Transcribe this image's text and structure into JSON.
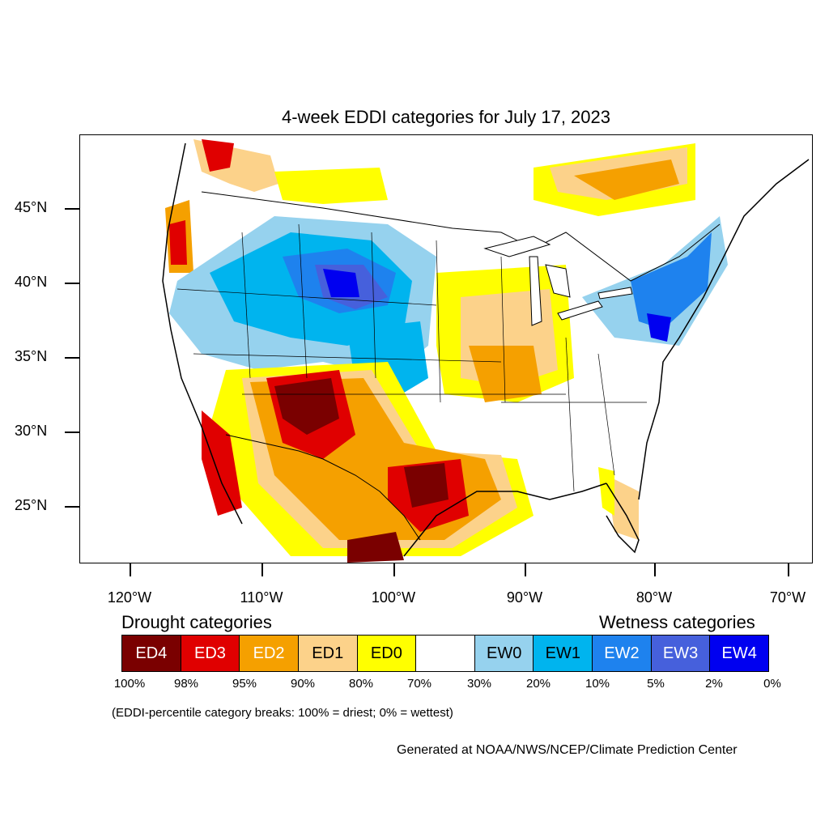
{
  "map": {
    "title": "4-week EDDI categories for July 17, 2023",
    "lat_labels": [
      "45°N",
      "40°N",
      "35°N",
      "30°N",
      "25°N"
    ],
    "lon_labels": [
      "120°W",
      "110°W",
      "100°W",
      "90°W",
      "80°W",
      "70°W"
    ],
    "region": "Contiguous United States",
    "colors": {
      "ED4": "#7a0000",
      "ED3": "#e00000",
      "ED2": "#f5a000",
      "ED1": "#fcd28a",
      "ED0": "#ffff00",
      "neutral": "#ffffff",
      "EW0": "#96d2ee",
      "EW1": "#00b4ee",
      "EW2": "#1e82ee",
      "EW3": "#4660dc",
      "EW4": "#0000f0"
    }
  },
  "legend": {
    "drought_heading": "Drought categories",
    "wetness_heading": "Wetness categories",
    "boxes": [
      {
        "label": "ED4",
        "color": "#7a0000",
        "text_color": "#ffffff"
      },
      {
        "label": "ED3",
        "color": "#e00000",
        "text_color": "#ffffff"
      },
      {
        "label": "ED2",
        "color": "#f5a000",
        "text_color": "#ffffff"
      },
      {
        "label": "ED1",
        "color": "#fcd28a",
        "text_color": "#000000"
      },
      {
        "label": "ED0",
        "color": "#ffff00",
        "text_color": "#000000"
      },
      {
        "label": "",
        "color": "#ffffff",
        "text_color": "#000000"
      },
      {
        "label": "EW0",
        "color": "#96d2ee",
        "text_color": "#000000"
      },
      {
        "label": "EW1",
        "color": "#00b4ee",
        "text_color": "#000000"
      },
      {
        "label": "EW2",
        "color": "#1e82ee",
        "text_color": "#ffffff"
      },
      {
        "label": "EW3",
        "color": "#4660dc",
        "text_color": "#ffffff"
      },
      {
        "label": "EW4",
        "color": "#0000f0",
        "text_color": "#ffffff"
      }
    ],
    "percentiles": [
      "100%",
      "98%",
      "95%",
      "90%",
      "80%",
      "70%",
      "30%",
      "20%",
      "10%",
      "5%",
      "2%",
      "0%"
    ]
  },
  "footer": {
    "note": "(EDDI-percentile category breaks: 100% = driest; 0% = wettest)",
    "credit": "Generated at NOAA/NWS/NCEP/Climate Prediction Center"
  }
}
